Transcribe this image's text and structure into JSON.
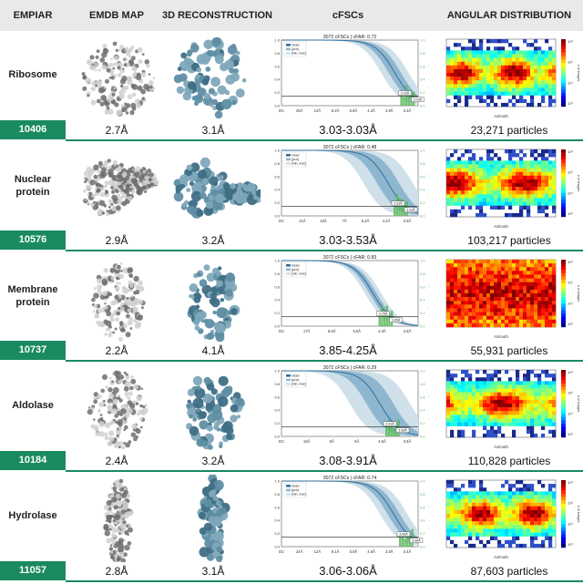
{
  "headers": {
    "empiar": "EMPIAR",
    "emdb_map": "EMDB MAP",
    "reconstruction": "3D RECONSTRUCTION",
    "cfscs": "cFSCs",
    "angular": "ANGULAR DISTRIBUTION"
  },
  "fsc_axis": {
    "ylabel": "Histogram Frequency",
    "yticks": [
      "0.0",
      "0.2",
      "0.4",
      "0.6",
      "0.8",
      "1.0"
    ],
    "ryticks": [
      "0.0",
      "0.2",
      "0.4",
      "0.6",
      "0.8",
      "1.0"
    ],
    "legend": [
      "mean",
      "[μ±σ]",
      "[min, max]"
    ]
  },
  "angular_axis": {
    "xlabel": "Azimuth",
    "colorbar_label": "# of images",
    "colorbar_ticks": [
      "10³",
      "10²",
      "10¹",
      "10⁰"
    ]
  },
  "colors": {
    "accent": "#1a8a60",
    "header_band": "#e9e9e9",
    "map_fill": "#5f8ea3",
    "emdb_fill": "#9a9a9a",
    "histogram": "#5cb85c"
  },
  "rows": [
    {
      "name": "Ribosome",
      "empiar_id": "10406",
      "emdb_res": "2.7Å",
      "recon_res": "3.1Å",
      "cfsc_title": "3072 cFSCs | cFAR: 0.72",
      "cfsc_range": "3.03-3.03Å",
      "particles": "23,271 particles",
      "xticks": [
        "DC",
        "25Å",
        "12Å",
        "8.2Å",
        "5.8Å",
        "4.3Å",
        "3.9Å",
        "3.3Å"
      ],
      "res_labels": [
        "3.03Å",
        "3.03Å"
      ]
    },
    {
      "name": "Nuclear protein",
      "empiar_id": "10576",
      "emdb_res": "2.9Å",
      "recon_res": "3.2Å",
      "cfsc_title": "3072 cFSCs | cFAR: 0.48",
      "cfsc_range": "3.03-3.53Å",
      "particles": "103,217 particles",
      "xticks": [
        "DC",
        "21Å",
        "10Å",
        "7Å",
        "5.2Å",
        "4.2Å",
        "3.5Å"
      ],
      "res_labels": [
        "3.53Å",
        "3.03Å"
      ]
    },
    {
      "name": "Membrane protein",
      "empiar_id": "10737",
      "emdb_res": "2.2Å",
      "recon_res": "4.1Å",
      "cfsc_title": "3072 cFSCs | cFAR: 0.83",
      "cfsc_range": "3.85-4.25Å",
      "particles": "55,931 particles",
      "xticks": [
        "DC",
        "17Å",
        "8.6Å",
        "5.8Å",
        "4.3Å",
        "3.5Å"
      ],
      "res_labels": [
        "4.25Å",
        "3.85Å"
      ]
    },
    {
      "name": "Aldolase",
      "empiar_id": "10184",
      "emdb_res": "2.4Å",
      "recon_res": "3.2Å",
      "cfsc_title": "3072 cFSCs | cFAR: 0.29",
      "cfsc_range": "3.08-3.91Å",
      "particles": "110,828 particles",
      "xticks": [
        "DC",
        "18Å",
        "9Å",
        "6Å",
        "4.5Å",
        "3.6Å"
      ],
      "res_labels": [
        "3.91Å",
        "3.08Å"
      ]
    },
    {
      "name": "Hydrolase",
      "empiar_id": "11057",
      "emdb_res": "2.8Å",
      "recon_res": "3.1Å",
      "cfsc_title": "3072 cFSCs | cFAR: 0.74",
      "cfsc_range": "3.06-3.06Å",
      "particles": "87,603 particles",
      "xticks": [
        "DC",
        "24Å",
        "12Å",
        "8.1Å",
        "5.9Å",
        "4.6Å",
        "3.8Å",
        "3.4Å"
      ],
      "res_labels": [
        "3.06Å",
        "3.06Å"
      ]
    }
  ]
}
